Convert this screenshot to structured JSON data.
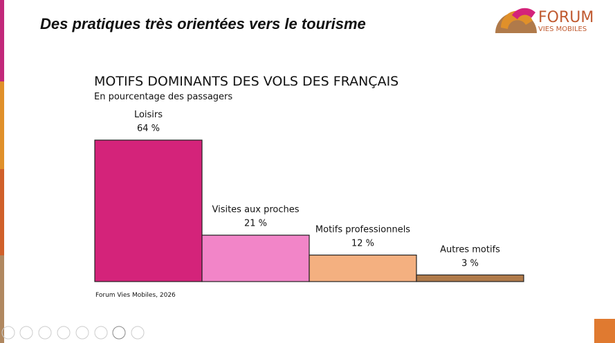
{
  "slide_title": "Des pratiques très orientées vers le tourisme",
  "logo": {
    "name": "FORUM",
    "tagline": "VIES MOBILES"
  },
  "chart_data": {
    "type": "bar",
    "title": "MOTIFS DOMINANTS DES VOLS DES FRANÇAIS",
    "subtitle": "En pourcentage des passagers",
    "source": "Forum Vies Mobiles, 2026",
    "categories": [
      "Loisirs",
      "Visites aux proches",
      "Motifs professionnels",
      "Autres motifs"
    ],
    "values": [
      64,
      21,
      12,
      3
    ],
    "value_labels": [
      "64 %",
      "21 %",
      "12 %",
      "3 %"
    ],
    "colors": [
      "#d4237a",
      "#f285c8",
      "#f4b080",
      "#b07a4a"
    ]
  }
}
